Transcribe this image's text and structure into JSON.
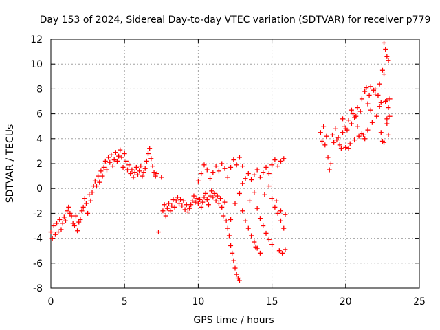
{
  "chart_data": {
    "type": "scatter",
    "title": "Day 153 of 2024, Sidereal Day-to-day VTEC variation (SDTVAR) for receiver p779",
    "xlabel": "GPS time / hours",
    "ylabel": "SDTVAR / TECUs",
    "xlim": [
      0,
      25
    ],
    "ylim": [
      -8,
      12
    ],
    "xticks": [
      0,
      5,
      10,
      15,
      20,
      25
    ],
    "yticks": [
      -8,
      -6,
      -4,
      -2,
      0,
      2,
      4,
      6,
      8,
      10,
      12
    ],
    "grid": true,
    "marker": "+",
    "color": "#ff0000",
    "series": [
      {
        "values_xy": [
          [
            0.0,
            -3.5
          ],
          [
            0.1,
            -4.0
          ],
          [
            0.2,
            -3.0
          ],
          [
            0.3,
            -3.7
          ],
          [
            0.4,
            -2.8
          ],
          [
            0.5,
            -3.5
          ],
          [
            0.6,
            -2.5
          ],
          [
            0.7,
            -3.3
          ],
          [
            0.8,
            -2.8
          ],
          [
            0.9,
            -2.3
          ],
          [
            1.0,
            -2.6
          ],
          [
            1.1,
            -1.8
          ],
          [
            1.2,
            -1.5
          ],
          [
            1.3,
            -2.0
          ],
          [
            1.4,
            -2.2
          ],
          [
            1.5,
            -2.8
          ],
          [
            1.6,
            -3.0
          ],
          [
            1.7,
            -2.2
          ],
          [
            1.8,
            -3.4
          ],
          [
            1.9,
            -2.7
          ],
          [
            2.0,
            -2.5
          ],
          [
            2.1,
            -1.8
          ],
          [
            2.2,
            -1.5
          ],
          [
            2.3,
            -0.8
          ],
          [
            2.4,
            -1.2
          ],
          [
            2.5,
            -2.0
          ],
          [
            2.6,
            -0.5
          ],
          [
            2.7,
            -1.0
          ],
          [
            2.8,
            -0.3
          ],
          [
            2.9,
            0.2
          ],
          [
            3.0,
            0.6
          ],
          [
            3.1,
            0.2
          ],
          [
            3.2,
            1.0
          ],
          [
            3.3,
            0.5
          ],
          [
            3.4,
            1.4
          ],
          [
            3.5,
            1.0
          ],
          [
            3.6,
            1.7
          ],
          [
            3.7,
            2.2
          ],
          [
            3.8,
            1.5
          ],
          [
            3.9,
            2.5
          ],
          [
            4.0,
            2.1
          ],
          [
            4.1,
            2.7
          ],
          [
            4.2,
            1.8
          ],
          [
            4.3,
            2.3
          ],
          [
            4.4,
            2.9
          ],
          [
            4.5,
            2.2
          ],
          [
            4.6,
            2.6
          ],
          [
            4.7,
            3.1
          ],
          [
            4.8,
            2.5
          ],
          [
            4.9,
            1.7
          ],
          [
            5.0,
            2.8
          ],
          [
            5.1,
            2.2
          ],
          [
            5.2,
            1.5
          ],
          [
            5.3,
            1.9
          ],
          [
            5.4,
            1.2
          ],
          [
            5.5,
            1.5
          ],
          [
            5.6,
            0.9
          ],
          [
            5.7,
            1.3
          ],
          [
            5.8,
            1.7
          ],
          [
            5.9,
            1.1
          ],
          [
            6.0,
            1.4
          ],
          [
            6.1,
            1.8
          ],
          [
            6.2,
            1.0
          ],
          [
            6.3,
            1.3
          ],
          [
            6.4,
            1.6
          ],
          [
            6.5,
            2.2
          ],
          [
            6.6,
            2.8
          ],
          [
            6.7,
            3.2
          ],
          [
            6.8,
            2.4
          ],
          [
            6.9,
            1.8
          ],
          [
            7.0,
            1.3
          ],
          [
            7.1,
            1.0
          ],
          [
            7.2,
            1.2
          ],
          [
            7.3,
            -3.5
          ],
          [
            7.5,
            0.9
          ],
          [
            7.6,
            -1.8
          ],
          [
            7.7,
            -1.3
          ],
          [
            7.8,
            -2.2
          ],
          [
            7.9,
            -1.6
          ],
          [
            8.0,
            -1.2
          ],
          [
            8.1,
            -1.8
          ],
          [
            8.2,
            -1.4
          ],
          [
            8.3,
            -0.9
          ],
          [
            8.4,
            -1.5
          ],
          [
            8.5,
            -1.0
          ],
          [
            8.6,
            -0.7
          ],
          [
            8.7,
            -1.2
          ],
          [
            8.8,
            -0.9
          ],
          [
            8.9,
            -1.4
          ],
          [
            9.0,
            -1.0
          ],
          [
            9.1,
            -1.7
          ],
          [
            9.2,
            -1.3
          ],
          [
            9.3,
            -1.9
          ],
          [
            9.4,
            -1.6
          ],
          [
            9.5,
            -1.3
          ],
          [
            9.6,
            -1.0
          ],
          [
            9.7,
            -0.6
          ],
          [
            9.8,
            -1.1
          ],
          [
            9.9,
            -0.8
          ],
          [
            10.0,
            -1.2
          ],
          [
            10.1,
            -0.9
          ],
          [
            10.2,
            -1.5
          ],
          [
            10.3,
            -1.1
          ],
          [
            10.4,
            -0.7
          ],
          [
            10.5,
            -0.4
          ],
          [
            10.6,
            -0.9
          ],
          [
            10.7,
            -1.3
          ],
          [
            10.8,
            -0.6
          ],
          [
            10.9,
            -0.2
          ],
          [
            11.0,
            -0.7
          ],
          [
            11.1,
            -0.4
          ],
          [
            11.2,
            -1.0
          ],
          [
            11.3,
            -0.6
          ],
          [
            11.4,
            -1.2
          ],
          [
            11.5,
            -0.8
          ],
          [
            11.6,
            -1.5
          ],
          [
            11.7,
            -2.2
          ],
          [
            11.8,
            -1.1
          ],
          [
            11.9,
            -2.6
          ],
          [
            12.0,
            -3.2
          ],
          [
            12.1,
            -3.8
          ],
          [
            12.2,
            -4.6
          ],
          [
            12.3,
            -5.2
          ],
          [
            12.4,
            -5.8
          ],
          [
            12.5,
            -6.4
          ],
          [
            12.6,
            -6.9
          ],
          [
            12.7,
            -7.2
          ],
          [
            12.8,
            -7.4
          ],
          [
            10.0,
            0.6
          ],
          [
            10.2,
            1.2
          ],
          [
            10.4,
            1.9
          ],
          [
            10.6,
            1.5
          ],
          [
            10.8,
            0.8
          ],
          [
            11.0,
            1.3
          ],
          [
            11.2,
            1.8
          ],
          [
            11.4,
            1.4
          ],
          [
            11.6,
            2.0
          ],
          [
            11.8,
            1.6
          ],
          [
            12.0,
            0.9
          ],
          [
            12.2,
            1.7
          ],
          [
            12.4,
            2.3
          ],
          [
            12.6,
            1.9
          ],
          [
            12.8,
            2.5
          ],
          [
            13.0,
            1.8
          ],
          [
            12.2,
            -2.5
          ],
          [
            12.5,
            -1.2
          ],
          [
            12.8,
            -0.4
          ],
          [
            13.0,
            -1.8
          ],
          [
            13.2,
            -2.6
          ],
          [
            13.4,
            -3.2
          ],
          [
            13.6,
            -3.8
          ],
          [
            13.8,
            -4.3
          ],
          [
            14.0,
            -4.8
          ],
          [
            13.0,
            0.4
          ],
          [
            13.2,
            0.8
          ],
          [
            13.4,
            1.2
          ],
          [
            13.6,
            0.7
          ],
          [
            13.8,
            1.1
          ],
          [
            14.0,
            1.5
          ],
          [
            14.2,
            0.9
          ],
          [
            14.4,
            1.3
          ],
          [
            14.6,
            1.7
          ],
          [
            14.8,
            1.2
          ],
          [
            15.0,
            1.9
          ],
          [
            15.2,
            2.3
          ],
          [
            15.4,
            1.8
          ],
          [
            15.6,
            2.2
          ],
          [
            15.8,
            2.4
          ],
          [
            13.5,
            -1.0
          ],
          [
            13.8,
            -0.3
          ],
          [
            14.0,
            -1.6
          ],
          [
            14.2,
            -2.4
          ],
          [
            14.4,
            -3.0
          ],
          [
            14.6,
            -3.6
          ],
          [
            14.8,
            -4.1
          ],
          [
            15.0,
            -4.5
          ],
          [
            14.5,
            -0.5
          ],
          [
            14.8,
            0.2
          ],
          [
            15.0,
            -0.8
          ],
          [
            15.2,
            -1.5
          ],
          [
            15.4,
            -2.0
          ],
          [
            15.6,
            -2.6
          ],
          [
            15.8,
            -3.2
          ],
          [
            15.5,
            -5.0
          ],
          [
            15.7,
            -5.2
          ],
          [
            15.9,
            -4.9
          ],
          [
            15.3,
            -1.0
          ],
          [
            15.6,
            -1.8
          ],
          [
            15.9,
            -2.1
          ],
          [
            14.2,
            -5.2
          ],
          [
            13.9,
            -4.7
          ],
          [
            18.3,
            4.5
          ],
          [
            18.4,
            3.8
          ],
          [
            18.5,
            5.0
          ],
          [
            18.6,
            3.5
          ],
          [
            18.7,
            4.2
          ],
          [
            18.8,
            2.5
          ],
          [
            18.9,
            1.5
          ],
          [
            19.0,
            2.0
          ],
          [
            19.1,
            4.3
          ],
          [
            19.2,
            3.7
          ],
          [
            19.3,
            4.8
          ],
          [
            19.4,
            3.9
          ],
          [
            19.5,
            4.1
          ],
          [
            19.6,
            3.5
          ],
          [
            19.7,
            3.2
          ],
          [
            19.8,
            4.5
          ],
          [
            19.9,
            5.0
          ],
          [
            20.0,
            3.3
          ],
          [
            20.1,
            4.7
          ],
          [
            20.2,
            5.5
          ],
          [
            20.3,
            3.6
          ],
          [
            20.4,
            5.2
          ],
          [
            20.5,
            6.0
          ],
          [
            20.6,
            3.9
          ],
          [
            20.7,
            5.8
          ],
          [
            20.8,
            6.5
          ],
          [
            20.9,
            4.2
          ],
          [
            21.0,
            6.2
          ],
          [
            21.1,
            7.2
          ],
          [
            21.2,
            4.3
          ],
          [
            21.3,
            7.8
          ],
          [
            21.4,
            8.1
          ],
          [
            21.5,
            6.8
          ],
          [
            21.6,
            7.5
          ],
          [
            21.7,
            8.2
          ],
          [
            21.8,
            5.3
          ],
          [
            21.9,
            7.9
          ],
          [
            22.0,
            8.0
          ],
          [
            22.1,
            5.8
          ],
          [
            22.2,
            7.5
          ],
          [
            22.3,
            8.4
          ],
          [
            22.4,
            6.9
          ],
          [
            22.5,
            3.8
          ],
          [
            22.6,
            9.2
          ],
          [
            22.7,
            7.0
          ],
          [
            22.8,
            5.2
          ],
          [
            22.9,
            6.5
          ],
          [
            22.5,
            9.5
          ],
          [
            22.6,
            11.7
          ],
          [
            22.7,
            11.2
          ],
          [
            22.8,
            10.6
          ],
          [
            22.9,
            10.3
          ],
          [
            22.8,
            5.6
          ],
          [
            22.3,
            6.6
          ],
          [
            22.0,
            7.6
          ],
          [
            21.7,
            6.3
          ],
          [
            21.5,
            4.7
          ],
          [
            21.3,
            4.0
          ],
          [
            21.1,
            4.4
          ],
          [
            20.8,
            5.0
          ],
          [
            20.6,
            5.7
          ],
          [
            20.4,
            6.3
          ],
          [
            22.4,
            4.5
          ],
          [
            22.6,
            3.7
          ],
          [
            22.9,
            4.3
          ],
          [
            23.0,
            5.8
          ],
          [
            23.0,
            7.2
          ],
          [
            22.8,
            7.1
          ],
          [
            20.2,
            3.2
          ],
          [
            20.0,
            4.8
          ],
          [
            19.8,
            5.6
          ]
        ]
      }
    ]
  }
}
